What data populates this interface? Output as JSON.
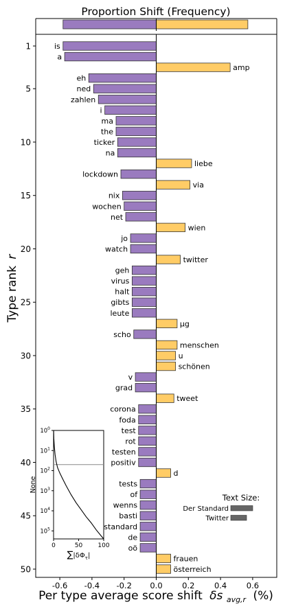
{
  "chart_data": {
    "type": "bar",
    "title": "Proportion Shift (Frequency)",
    "xlabel_main": "Per type average score shift",
    "xlabel_math_symbol": "δs",
    "xlabel_math_sub": "avg,r",
    "xlabel_unit": "(%)",
    "ylabel_main": "Type rank",
    "ylabel_italic": "r",
    "xlim": [
      -0.75,
      0.75
    ],
    "xticks": [
      {
        "value": -0.6,
        "label": "-0.6"
      },
      {
        "value": -0.4,
        "label": "-0.4"
      },
      {
        "value": -0.2,
        "label": "-0.2"
      },
      {
        "value": 0.0,
        "label": "0.0"
      },
      {
        "value": 0.2,
        "label": "0.2"
      },
      {
        "value": 0.4,
        "label": "0.4"
      },
      {
        "value": 0.6,
        "label": "0.6"
      }
    ],
    "yticks": [
      {
        "rank": 1,
        "label": "1"
      },
      {
        "rank": 5,
        "label": "5"
      },
      {
        "rank": 10,
        "label": "10"
      },
      {
        "rank": 15,
        "label": "15"
      },
      {
        "rank": 20,
        "label": "20"
      },
      {
        "rank": 25,
        "label": "25"
      },
      {
        "rank": 30,
        "label": "30"
      },
      {
        "rank": 35,
        "label": "35"
      },
      {
        "rank": 40,
        "label": "40"
      },
      {
        "rank": 45,
        "label": "45"
      },
      {
        "rank": 50,
        "label": "50"
      }
    ],
    "summary_bar": {
      "negative": -0.58,
      "positive": 0.57
    },
    "colors": {
      "negative": "#9a7bbf",
      "positive": "#ffcc66",
      "edge": "#333333"
    },
    "bars": [
      {
        "rank": 1,
        "word": "is",
        "value": -0.58
      },
      {
        "rank": 2,
        "word": "a",
        "value": -0.57
      },
      {
        "rank": 3,
        "word": "amp",
        "value": 0.46
      },
      {
        "rank": 4,
        "word": "eh",
        "value": -0.42
      },
      {
        "rank": 5,
        "word": "ned",
        "value": -0.39
      },
      {
        "rank": 6,
        "word": "zahlen",
        "value": -0.36
      },
      {
        "rank": 7,
        "word": "i",
        "value": -0.32
      },
      {
        "rank": 8,
        "word": "ma",
        "value": -0.25
      },
      {
        "rank": 9,
        "word": "the",
        "value": -0.25
      },
      {
        "rank": 10,
        "word": "ticker",
        "value": -0.24
      },
      {
        "rank": 11,
        "word": "na",
        "value": -0.24
      },
      {
        "rank": 12,
        "word": "liebe",
        "value": 0.22
      },
      {
        "rank": 13,
        "word": "lockdown",
        "value": -0.22
      },
      {
        "rank": 14,
        "word": "via",
        "value": 0.21
      },
      {
        "rank": 15,
        "word": "nix",
        "value": -0.21
      },
      {
        "rank": 16,
        "word": "wochen",
        "value": -0.2
      },
      {
        "rank": 17,
        "word": "net",
        "value": -0.19
      },
      {
        "rank": 18,
        "word": "wien",
        "value": 0.18
      },
      {
        "rank": 19,
        "word": "jo",
        "value": -0.16
      },
      {
        "rank": 20,
        "word": "watch",
        "value": -0.16
      },
      {
        "rank": 21,
        "word": "twitter",
        "value": 0.15
      },
      {
        "rank": 22,
        "word": "geh",
        "value": -0.15
      },
      {
        "rank": 23,
        "word": "virus",
        "value": -0.15
      },
      {
        "rank": 24,
        "word": "halt",
        "value": -0.15
      },
      {
        "rank": 25,
        "word": "gibts",
        "value": -0.15
      },
      {
        "rank": 26,
        "word": "leute",
        "value": -0.15
      },
      {
        "rank": 27,
        "word": "µg",
        "value": 0.13
      },
      {
        "rank": 28,
        "word": "scho",
        "value": -0.14
      },
      {
        "rank": 29,
        "word": "menschen",
        "value": 0.13
      },
      {
        "rank": 30,
        "word": "u",
        "value": 0.12
      },
      {
        "rank": 31,
        "word": "schönen",
        "value": 0.12
      },
      {
        "rank": 32,
        "word": "v",
        "value": -0.13
      },
      {
        "rank": 33,
        "word": "grad",
        "value": -0.13
      },
      {
        "rank": 34,
        "word": "tweet",
        "value": 0.11
      },
      {
        "rank": 35,
        "word": "corona",
        "value": -0.11
      },
      {
        "rank": 36,
        "word": "foda",
        "value": -0.11
      },
      {
        "rank": 37,
        "word": "test",
        "value": -0.11
      },
      {
        "rank": 38,
        "word": "rot",
        "value": -0.11
      },
      {
        "rank": 39,
        "word": "testen",
        "value": -0.11
      },
      {
        "rank": 40,
        "word": "positiv",
        "value": -0.11
      },
      {
        "rank": 41,
        "word": "d",
        "value": 0.09
      },
      {
        "rank": 42,
        "word": "tests",
        "value": -0.1
      },
      {
        "rank": 43,
        "word": "of",
        "value": -0.1
      },
      {
        "rank": 44,
        "word": "wenns",
        "value": -0.1
      },
      {
        "rank": 45,
        "word": "basti",
        "value": -0.1
      },
      {
        "rank": 46,
        "word": "standard",
        "value": -0.1
      },
      {
        "rank": 47,
        "word": "de",
        "value": -0.1
      },
      {
        "rank": 48,
        "word": "oö",
        "value": -0.1
      },
      {
        "rank": 49,
        "word": "frauen",
        "value": 0.09
      },
      {
        "rank": 50,
        "word": "österreich",
        "value": 0.09
      }
    ],
    "text_size_legend": {
      "title": "Text Size:",
      "entries": [
        {
          "label": "Der Standard",
          "relative_size": 1.0
        },
        {
          "label": "Twitter",
          "relative_size": 0.72
        }
      ],
      "color": "#666666"
    },
    "inset": {
      "ylabel": "None",
      "xlabel_sum": "∑",
      "xlabel_expr": "|δΦ",
      "xlabel_sub": "τ",
      "xlabel_end": "|",
      "xlim": [
        0,
        100
      ],
      "xticks": [
        {
          "value": 0,
          "label": "0"
        },
        {
          "value": 50,
          "label": "50"
        },
        {
          "value": 100,
          "label": "100"
        }
      ],
      "yticks": [
        {
          "exp": 0,
          "base": "10",
          "sup": "0"
        },
        {
          "exp": 1,
          "base": "10",
          "sup": "1"
        },
        {
          "exp": 2,
          "base": "10",
          "sup": "2"
        },
        {
          "exp": 3,
          "base": "10",
          "sup": "3"
        },
        {
          "exp": 4,
          "base": "10",
          "sup": "4"
        },
        {
          "exp": 5,
          "base": "10",
          "sup": "5"
        }
      ],
      "hline_exp": 1.7,
      "curve": [
        [
          0.2,
          0.0
        ],
        [
          0.6,
          0.4
        ],
        [
          1.5,
          0.8
        ],
        [
          3,
          1.2
        ],
        [
          5,
          1.55
        ],
        [
          8,
          1.85
        ],
        [
          12,
          2.1
        ],
        [
          18,
          2.4
        ],
        [
          25,
          2.75
        ],
        [
          35,
          3.2
        ],
        [
          45,
          3.6
        ],
        [
          55,
          3.95
        ],
        [
          65,
          4.3
        ],
        [
          75,
          4.6
        ],
        [
          85,
          4.95
        ],
        [
          95,
          5.25
        ],
        [
          100,
          5.4
        ]
      ]
    }
  }
}
